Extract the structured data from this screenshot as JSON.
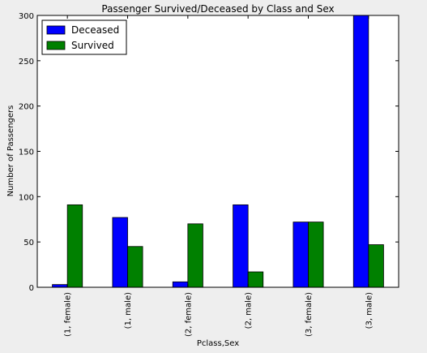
{
  "chart_data": {
    "type": "bar",
    "title": "Passenger Survived/Deceased by Class and Sex",
    "xlabel": "Pclass,Sex",
    "ylabel": "Number of Passengers",
    "categories": [
      "(1, female)",
      "(1, male)",
      "(2, female)",
      "(2, male)",
      "(3, female)",
      "(3, male)"
    ],
    "series": [
      {
        "name": "Deceased",
        "color": "#0000ff",
        "values": [
          3,
          77,
          6,
          91,
          72,
          300
        ]
      },
      {
        "name": "Survived",
        "color": "#008000",
        "values": [
          91,
          45,
          70,
          17,
          72,
          47
        ]
      }
    ],
    "ylim": [
      0,
      300
    ],
    "yticks": [
      0,
      50,
      100,
      150,
      200,
      250,
      300
    ],
    "legend_position": "top-left",
    "grid": false
  }
}
